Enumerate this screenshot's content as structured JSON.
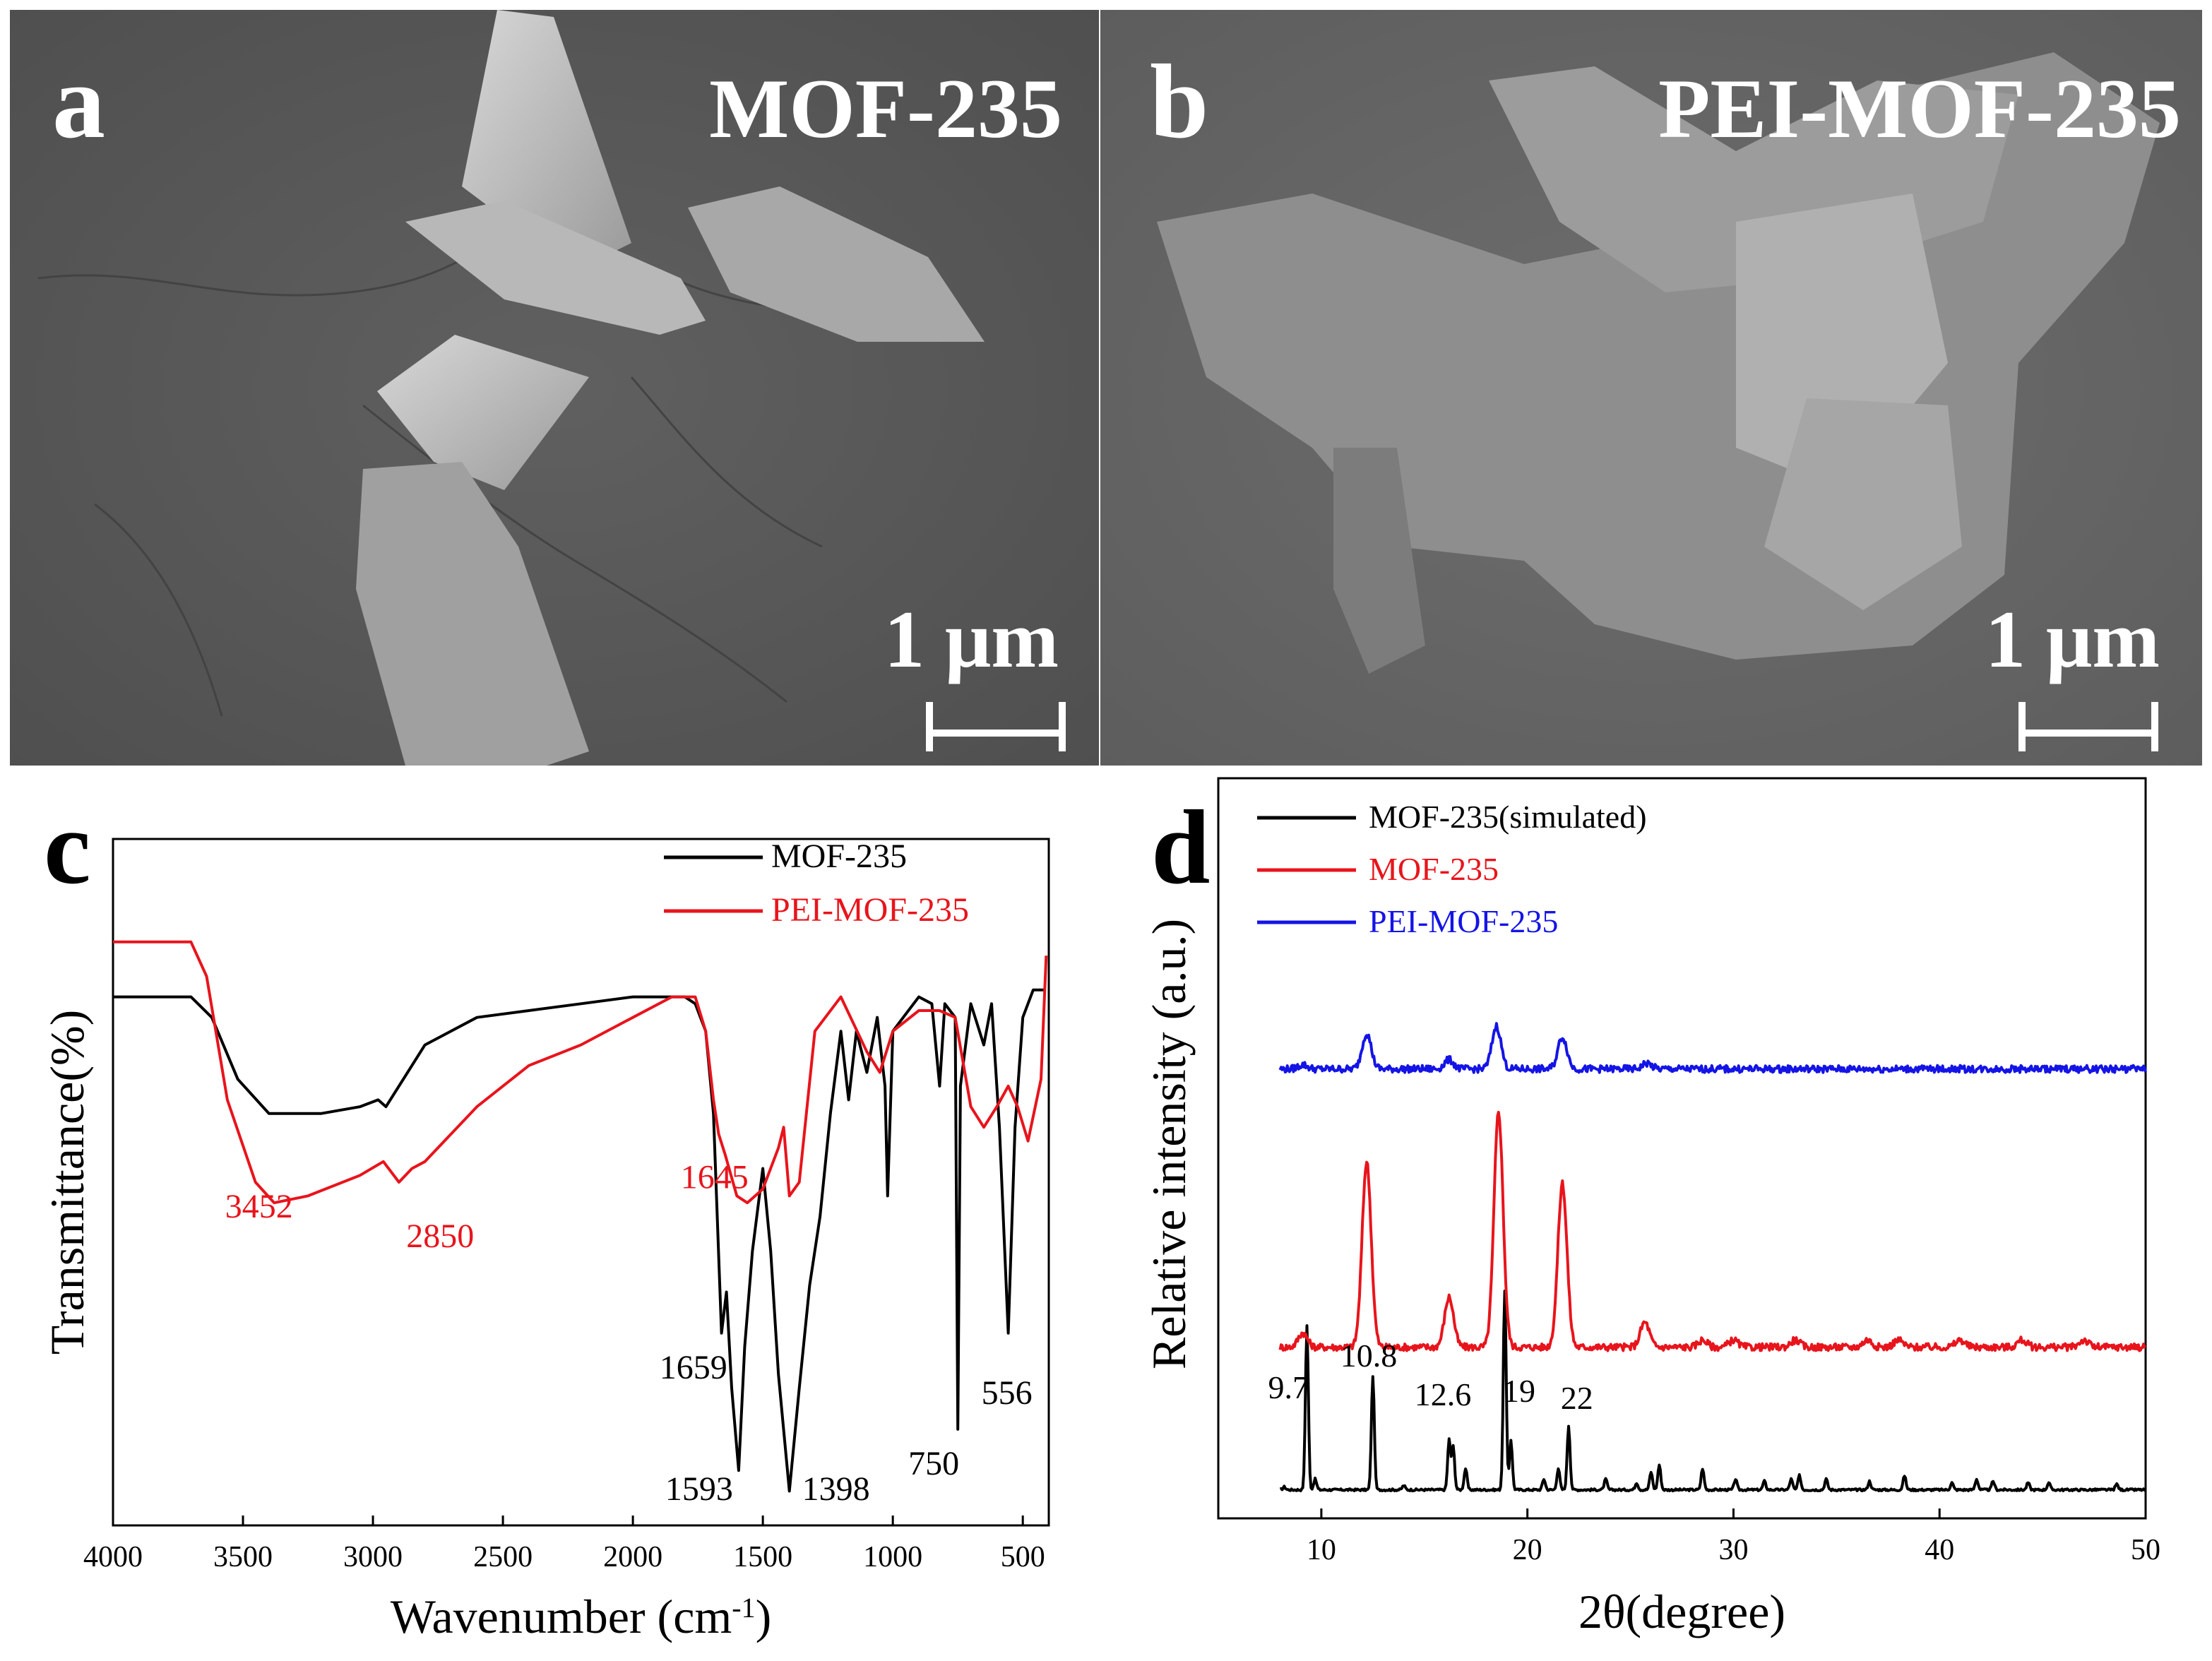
{
  "panels": {
    "a": {
      "letter": "a",
      "title": "MOF-235",
      "scale_label": "1 μm"
    },
    "b": {
      "letter": "b",
      "title": "PEI-MOF-235",
      "scale_label": "1 μm"
    },
    "c": {
      "letter": "c"
    },
    "d": {
      "letter": "d"
    }
  },
  "colors": {
    "black": "#000000",
    "red": "#e8141c",
    "blue": "#1414e6",
    "sem_bg_a": "#5a5a5a",
    "sem_bg_b": "#6a6a6a"
  },
  "chart_data": [
    {
      "id": "c",
      "type": "line",
      "title": "",
      "xlabel": "Wavenumber (cm",
      "xlabel_sup": "-1",
      "xlabel_end": ")",
      "ylabel": "Transmittance(%)",
      "xlim": [
        4000,
        400
      ],
      "ylim": [
        0,
        100
      ],
      "xticks": [
        4000,
        3500,
        3000,
        2500,
        2000,
        1500,
        1000,
        500
      ],
      "grid": false,
      "legend": {
        "position": "top-right",
        "entries": [
          "MOF-235",
          "PEI-MOF-235"
        ]
      },
      "series": [
        {
          "name": "MOF-235",
          "color": "#000000",
          "x": [
            4000,
            3700,
            3620,
            3520,
            3400,
            3200,
            3050,
            2980,
            2950,
            2800,
            2600,
            2400,
            2200,
            2000,
            1800,
            1760,
            1720,
            1690,
            1659,
            1640,
            1620,
            1593,
            1570,
            1540,
            1500,
            1470,
            1440,
            1398,
            1360,
            1320,
            1280,
            1240,
            1200,
            1170,
            1140,
            1100,
            1060,
            1030,
            1020,
            1000,
            960,
            900,
            850,
            820,
            800,
            760,
            750,
            740,
            700,
            650,
            620,
            590,
            556,
            530,
            500,
            460,
            420
          ],
          "y": [
            77,
            77,
            74,
            65,
            60,
            60,
            61,
            62,
            61,
            70,
            74,
            75,
            76,
            77,
            77,
            76,
            72,
            60,
            28,
            34,
            20,
            8,
            26,
            40,
            52,
            40,
            22,
            5,
            20,
            35,
            45,
            60,
            72,
            62,
            72,
            66,
            74,
            64,
            48,
            72,
            74,
            77,
            76,
            64,
            76,
            74,
            14,
            64,
            76,
            70,
            76,
            58,
            28,
            58,
            74,
            78,
            78
          ]
        },
        {
          "name": "PEI-MOF-235",
          "color": "#e8141c",
          "x": [
            4000,
            3700,
            3640,
            3560,
            3452,
            3380,
            3250,
            3050,
            2960,
            2900,
            2850,
            2800,
            2600,
            2400,
            2200,
            2000,
            1850,
            1760,
            1720,
            1690,
            1670,
            1645,
            1600,
            1560,
            1500,
            1440,
            1420,
            1398,
            1360,
            1300,
            1200,
            1100,
            1050,
            1000,
            900,
            820,
            760,
            700,
            650,
            600,
            556,
            520,
            480,
            430,
            410
          ],
          "y": [
            85,
            85,
            80,
            62,
            50,
            47,
            48,
            51,
            53,
            50,
            52,
            53,
            61,
            67,
            70,
            74,
            77,
            77,
            72,
            62,
            57,
            54,
            48,
            47,
            49,
            55,
            58,
            48,
            50,
            72,
            77,
            69,
            66,
            72,
            75,
            75,
            74,
            61,
            58,
            61,
            64,
            61,
            56,
            65,
            83
          ]
        }
      ],
      "annotations": [
        {
          "text": "3452",
          "x": 3452,
          "color": "#e8141c"
        },
        {
          "text": "2850",
          "x": 2850,
          "color": "#e8141c"
        },
        {
          "text": "1645",
          "x": 1645,
          "color": "#e8141c"
        },
        {
          "text": "1659",
          "x": 1659,
          "color": "#000000"
        },
        {
          "text": "1593",
          "x": 1593,
          "color": "#000000"
        },
        {
          "text": "1398",
          "x": 1398,
          "color": "#000000"
        },
        {
          "text": "750",
          "x": 750,
          "color": "#000000"
        },
        {
          "text": "556",
          "x": 556,
          "color": "#000000"
        }
      ]
    },
    {
      "id": "d",
      "type": "line",
      "title": "",
      "xlabel": "2θ(degree)",
      "ylabel": "Relative intensity (a.u.)",
      "xlim": [
        5,
        50
      ],
      "ylim": [
        0,
        100
      ],
      "xticks": [
        10,
        20,
        30,
        40,
        50
      ],
      "grid": false,
      "legend": {
        "position": "top-left",
        "entries": [
          "MOF-235(simulated)",
          "MOF-235",
          "PEI-MOF-235"
        ]
      },
      "series": [
        {
          "name": "MOF-235(simulated)",
          "color": "#000000",
          "baseline": 4,
          "peaks": [
            [
              8.2,
              0.4
            ],
            [
              9.3,
              23
            ],
            [
              9.7,
              1.5
            ],
            [
              12.5,
              16
            ],
            [
              14.0,
              0.6
            ],
            [
              16.2,
              7
            ],
            [
              16.4,
              6
            ],
            [
              17.0,
              3
            ],
            [
              18.9,
              28
            ],
            [
              19.2,
              7
            ],
            [
              20.8,
              1.5
            ],
            [
              21.5,
              3
            ],
            [
              22.0,
              9
            ],
            [
              23.8,
              1.5
            ],
            [
              25.3,
              1
            ],
            [
              26.0,
              2.5
            ],
            [
              26.4,
              3.5
            ],
            [
              28.5,
              3
            ],
            [
              30.1,
              1.5
            ],
            [
              31.5,
              1.2
            ],
            [
              32.8,
              1.5
            ],
            [
              33.2,
              2
            ],
            [
              34.5,
              1.5
            ],
            [
              36.6,
              1.2
            ],
            [
              38.3,
              2
            ],
            [
              40.6,
              1
            ],
            [
              41.8,
              1.5
            ],
            [
              42.6,
              1.2
            ],
            [
              44.3,
              1
            ],
            [
              45.3,
              1
            ],
            [
              48.6,
              0.8
            ]
          ],
          "width": 0.07
        },
        {
          "name": "MOF-235",
          "color": "#e8141c",
          "baseline": 24,
          "peaks": [
            [
              9.1,
              2
            ],
            [
              12.2,
              26
            ],
            [
              16.2,
              7
            ],
            [
              18.6,
              33
            ],
            [
              21.7,
              23
            ],
            [
              25.7,
              3.5
            ],
            [
              28.5,
              1
            ],
            [
              30.0,
              1
            ],
            [
              33.0,
              1
            ],
            [
              36.5,
              1
            ],
            [
              38.0,
              1
            ],
            [
              41.0,
              1
            ],
            [
              44.0,
              1
            ],
            [
              47.0,
              1
            ]
          ],
          "width": 0.22
        },
        {
          "name": "PEI-MOF-235",
          "color": "#1414e6",
          "baseline": 63,
          "peaks": [
            [
              9.1,
              0.6
            ],
            [
              12.2,
              5
            ],
            [
              16.2,
              1.3
            ],
            [
              18.5,
              6
            ],
            [
              21.7,
              4.5
            ],
            [
              25.8,
              0.8
            ]
          ],
          "width": 0.22
        }
      ],
      "annotations": [
        {
          "text": "9.7",
          "x": 9.7
        },
        {
          "text": "10.8",
          "x": 10.8
        },
        {
          "text": "12.6",
          "x": 12.6
        },
        {
          "text": "19",
          "x": 19
        },
        {
          "text": "22",
          "x": 22
        }
      ]
    }
  ]
}
